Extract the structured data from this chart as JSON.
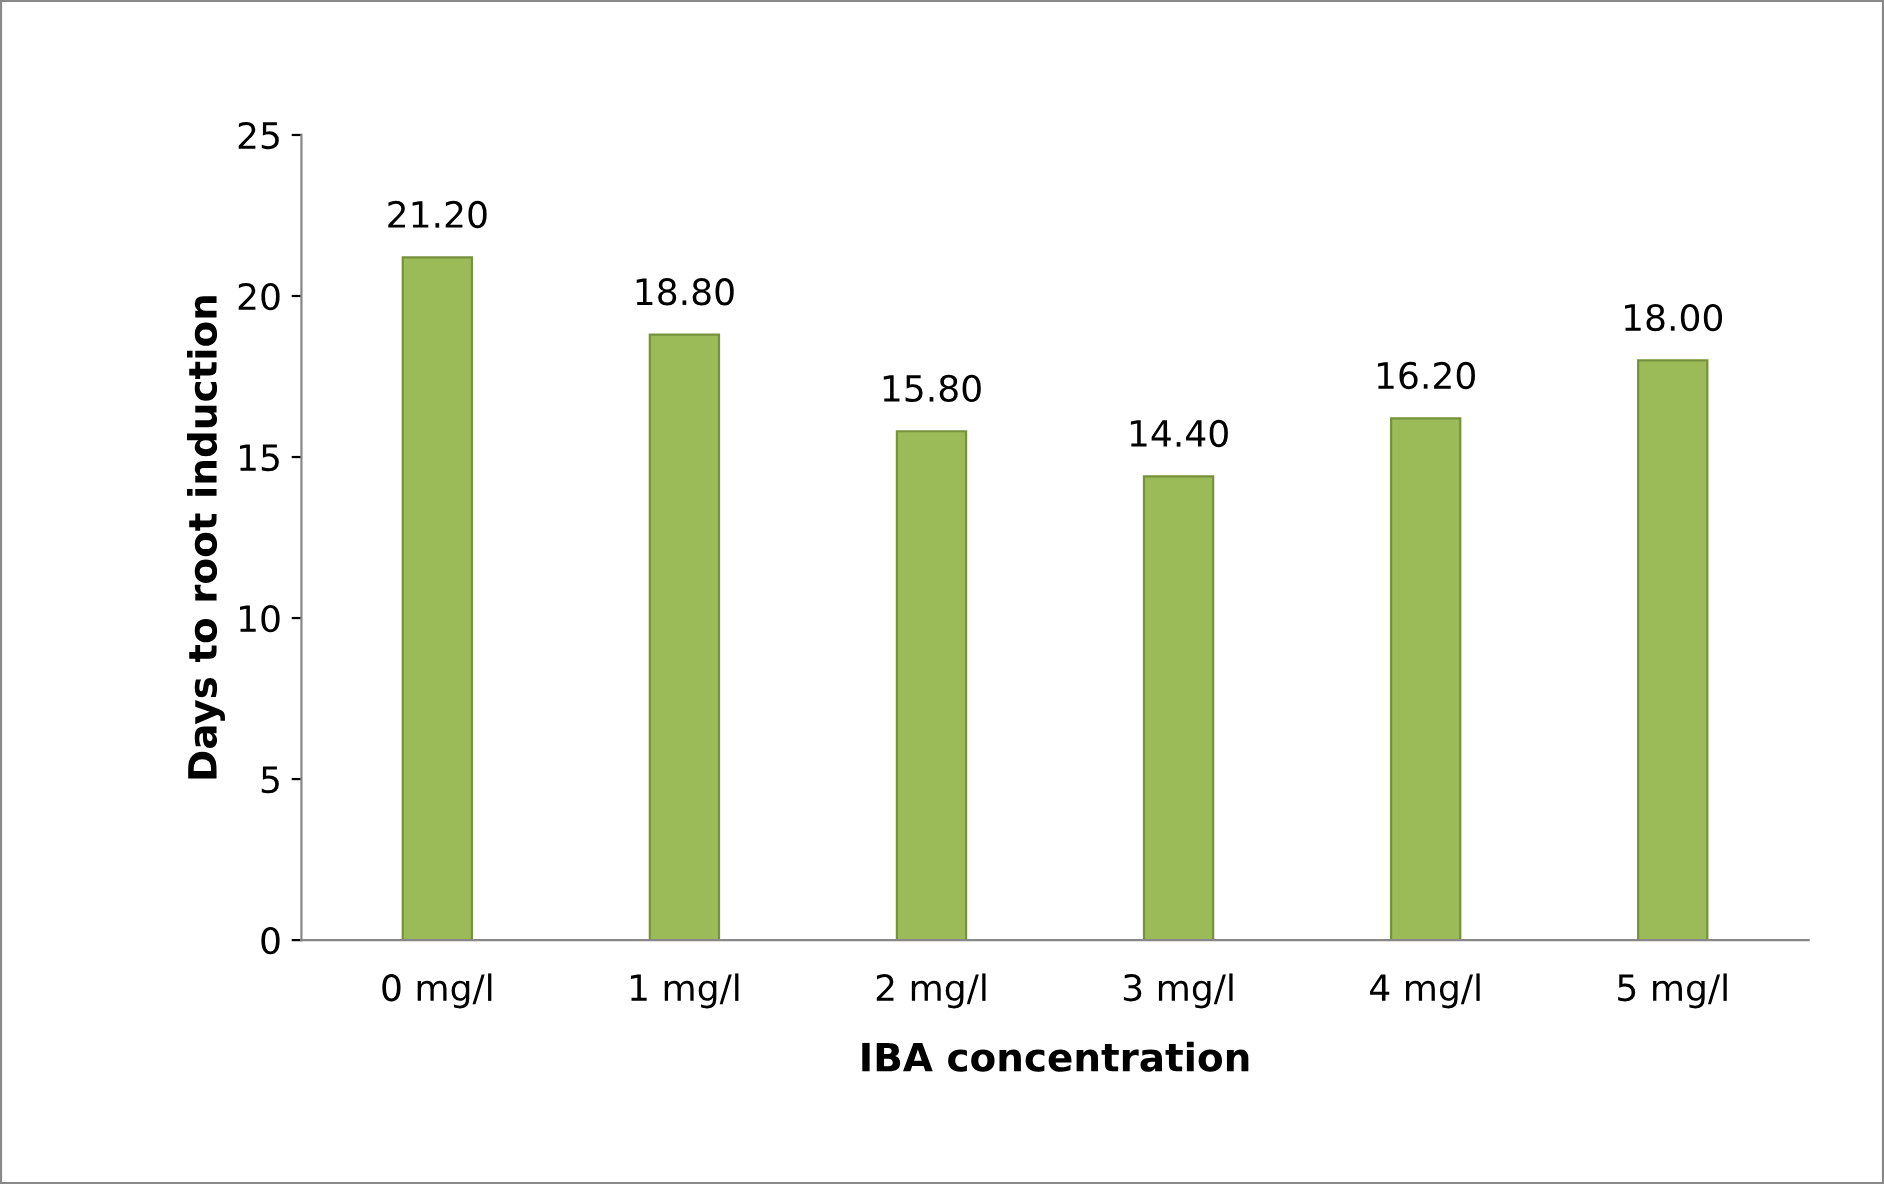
{
  "chart_data": {
    "type": "bar",
    "xlabel": "IBA concentration",
    "ylabel": "Days to root induction",
    "categories": [
      "0 mg/l",
      "1 mg/l",
      "2 mg/l",
      "3 mg/l",
      "4 mg/l",
      "5 mg/l"
    ],
    "values": [
      21.2,
      18.8,
      15.8,
      14.4,
      16.2,
      18.0
    ],
    "value_labels": [
      "21.20",
      "18.80",
      "15.80",
      "14.40",
      "16.20",
      "18.00"
    ],
    "color": "#9bbb59",
    "ylim": [
      0,
      25
    ],
    "yticks": [
      0,
      5,
      10,
      15,
      20,
      25
    ],
    "grid": false
  }
}
